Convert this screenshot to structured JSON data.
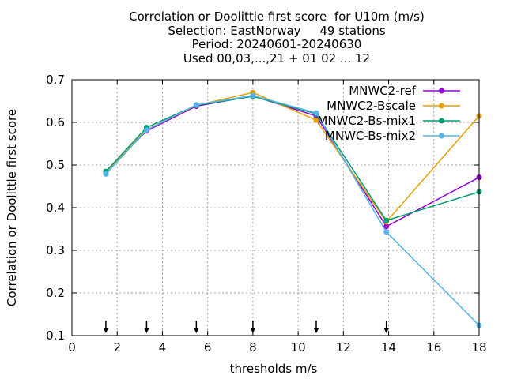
{
  "chart_data": {
    "type": "line",
    "title_lines": [
      "Correlation or Doolittle first score  for U10m (m/s)",
      "Selection: EastNorway     49 stations",
      "Period: 20240601-20240630",
      "Used 00,03,...,21 + 01 02 ... 12"
    ],
    "xlabel": "thresholds m/s",
    "ylabel": "Correlation or Doolittle first score",
    "xlim": [
      0,
      18
    ],
    "ylim": [
      0.1,
      0.7
    ],
    "xticks": [
      "0",
      "2",
      "4",
      "6",
      "8",
      "10",
      "12",
      "14",
      "16",
      "18"
    ],
    "yticks": [
      "0.1",
      "0.2",
      "0.3",
      "0.4",
      "0.5",
      "0.6",
      "0.7"
    ],
    "grid": true,
    "legend_position": "top-right",
    "threshold_markers": [
      1.5,
      3.3,
      5.5,
      8.0,
      10.8,
      13.9
    ],
    "x": [
      1.5,
      3.3,
      5.5,
      8.0,
      10.8,
      13.9,
      18.0
    ],
    "series": [
      {
        "name": "MNWC2-ref",
        "color": "#9400d3",
        "marker": "circle",
        "values": [
          0.484,
          0.58,
          0.638,
          0.662,
          0.615,
          0.356,
          0.471
        ]
      },
      {
        "name": "MNWC2-Bscale",
        "color": "#e69f00",
        "marker": "circle",
        "values": [
          0.484,
          0.583,
          0.64,
          0.67,
          0.605,
          0.367,
          0.615
        ]
      },
      {
        "name": "MNWC2-Bs-mix1",
        "color": "#009e73",
        "marker": "circle",
        "values": [
          0.485,
          0.588,
          0.64,
          0.661,
          0.62,
          0.37,
          0.437
        ]
      },
      {
        "name": "MNWC-Bs-mix2",
        "color": "#56b4e9",
        "marker": "circle",
        "values": [
          0.479,
          0.582,
          0.641,
          0.663,
          0.622,
          0.343,
          0.124
        ]
      }
    ]
  }
}
